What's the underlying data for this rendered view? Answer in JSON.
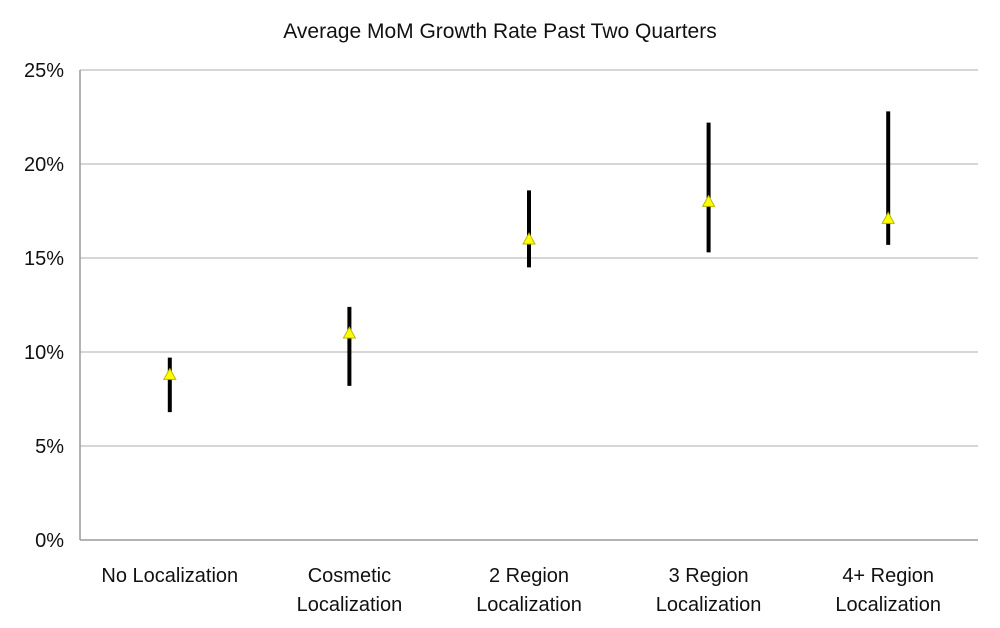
{
  "chart_data": {
    "type": "scatter",
    "title": "Average MoM Growth Rate Past Two Quarters",
    "xlabel": "",
    "ylabel": "",
    "categories": [
      [
        "No Localization"
      ],
      [
        "Cosmetic",
        "Localization"
      ],
      [
        "2 Region",
        "Localization"
      ],
      [
        "3 Region",
        "Localization"
      ],
      [
        "4+ Region",
        "Localization"
      ]
    ],
    "values": [
      8.8,
      11.0,
      16.0,
      18.0,
      17.1
    ],
    "error_low": [
      6.8,
      8.2,
      14.5,
      15.3,
      15.7
    ],
    "error_high": [
      9.7,
      12.4,
      18.6,
      22.2,
      22.8
    ],
    "ylim": [
      0,
      25
    ],
    "yticks": [
      "0%",
      "5%",
      "10%",
      "15%",
      "20%",
      "25%"
    ],
    "ytick_values": [
      0,
      5,
      10,
      15,
      20,
      25
    ],
    "grid": true,
    "legend": "none",
    "marker_color": "#ffff00",
    "errorbar_color": "#000000"
  }
}
